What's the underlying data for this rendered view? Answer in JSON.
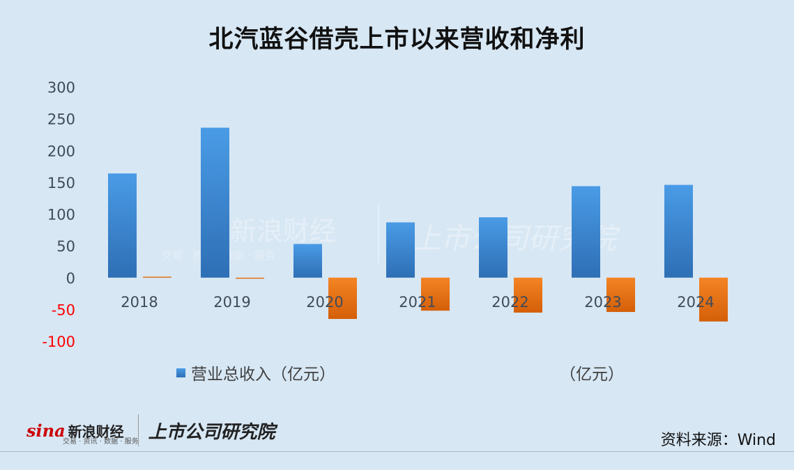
{
  "title": "北汽蓝谷借壳上市以来营收和净利",
  "chart_data": {
    "type": "bar",
    "categories": [
      "2018",
      "2019",
      "2020",
      "2021",
      "2022",
      "2023",
      "2024"
    ],
    "series": [
      {
        "name": "营业总收入（亿元）",
        "values": [
          164,
          236,
          53,
          87,
          95,
          144,
          146
        ],
        "color": "#3c8ad6"
      },
      {
        "name": "（亿元）",
        "values": [
          1.6,
          -0.5,
          -65,
          -52,
          -55,
          -54,
          -69
        ],
        "color": "#e8710f"
      }
    ],
    "yticks": [
      300,
      250,
      200,
      150,
      100,
      50,
      0,
      -50,
      -100
    ],
    "ylim": [
      -100,
      300
    ],
    "negative_tick_color": "#ff0000",
    "grid": false,
    "legend_position": "bottom"
  },
  "watermark": {
    "sina": "新浪财经",
    "sina_sub": "交易 · 资讯 · 数据 · 服务",
    "institute": "上市公司研究院"
  },
  "footer": {
    "sina_logo": "sina",
    "sina_name": "新浪财经",
    "sina_tagline": "交易 · 资讯 · 数据 · 服务",
    "institute_name": "上市公司研究院",
    "source": "资料来源：Wind"
  }
}
